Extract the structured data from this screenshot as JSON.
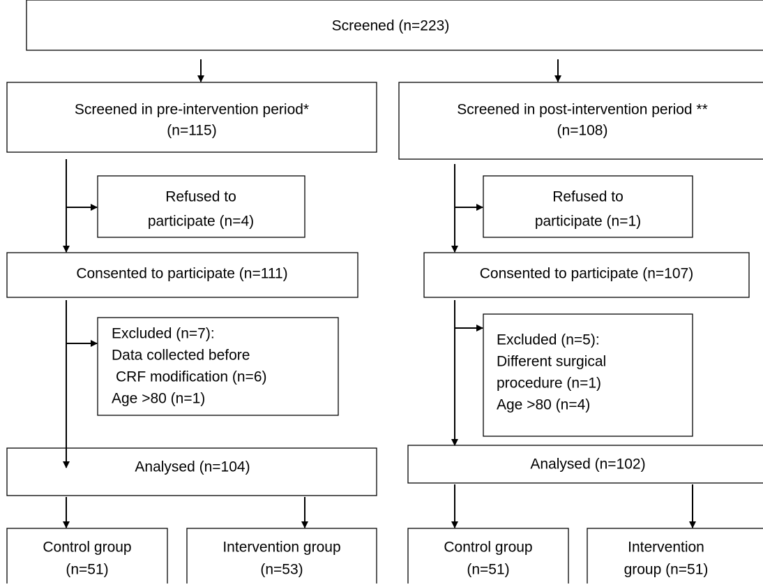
{
  "nodes": [
    {
      "lines": [
        "Screened (n=223)"
      ]
    },
    {
      "lines": [
        "Screened in pre-intervention period*",
        "(n=115)"
      ]
    },
    {
      "lines": [
        "Screened in post-intervention period **",
        "(n=108)"
      ]
    },
    {
      "lines": [
        "Refused to",
        "participate (n=4)"
      ]
    },
    {
      "lines": [
        "Refused to",
        "participate (n=1)"
      ]
    },
    {
      "lines": [
        "Consented to participate (n=111)"
      ]
    },
    {
      "lines": [
        "Consented to participate (n=107)"
      ]
    },
    {
      "lines": [
        "Excluded (n=7):",
        "Data collected before",
        "CRF modification (n=6)",
        "Age >80 (n=1)"
      ]
    },
    {
      "lines": [
        "Excluded (n=5):",
        "Different surgical",
        "procedure (n=1)",
        "Age >80 (n=4)"
      ]
    },
    {
      "lines": [
        "Analysed (n=104)"
      ]
    },
    {
      "lines": [
        "Analysed (n=102)"
      ]
    },
    {
      "lines": [
        "Control group",
        "(n=51)"
      ]
    },
    {
      "lines": [
        "Intervention group",
        "(n=53)"
      ]
    },
    {
      "lines": [
        "Control group",
        "(n=51)"
      ]
    },
    {
      "lines": [
        "Intervention",
        "group (n=51)"
      ]
    }
  ]
}
